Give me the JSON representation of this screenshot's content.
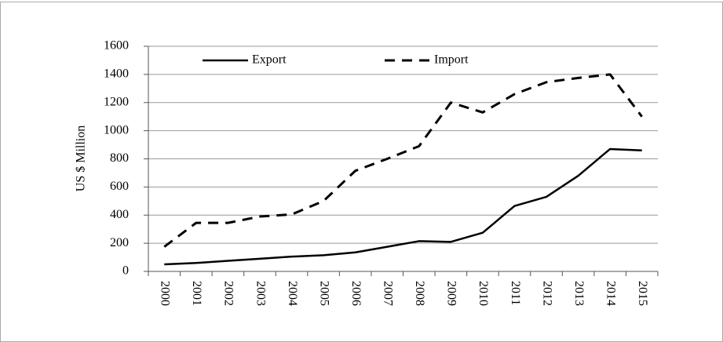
{
  "chart_data": {
    "type": "line",
    "ylabel": "US $ Million",
    "categories": [
      "2000",
      "2001",
      "2002",
      "2003",
      "2004",
      "2005",
      "2006",
      "2007",
      "2008",
      "2009",
      "2010",
      "2011",
      "2012",
      "2013",
      "2014",
      "2015"
    ],
    "series": [
      {
        "name": "Export",
        "color": "#000000",
        "dash": false,
        "values": [
          50,
          60,
          75,
          90,
          105,
          115,
          135,
          175,
          215,
          210,
          275,
          465,
          530,
          680,
          870,
          860
        ]
      },
      {
        "name": "Import",
        "color": "#000000",
        "dash": true,
        "values": [
          175,
          345,
          345,
          390,
          405,
          500,
          715,
          800,
          890,
          1200,
          1130,
          1260,
          1345,
          1375,
          1400,
          1100
        ]
      }
    ],
    "ylim": [
      0,
      1600
    ],
    "yticks": [
      0,
      200,
      400,
      600,
      800,
      1000,
      1200,
      1400,
      1600
    ],
    "grid": true,
    "legend": "top"
  }
}
